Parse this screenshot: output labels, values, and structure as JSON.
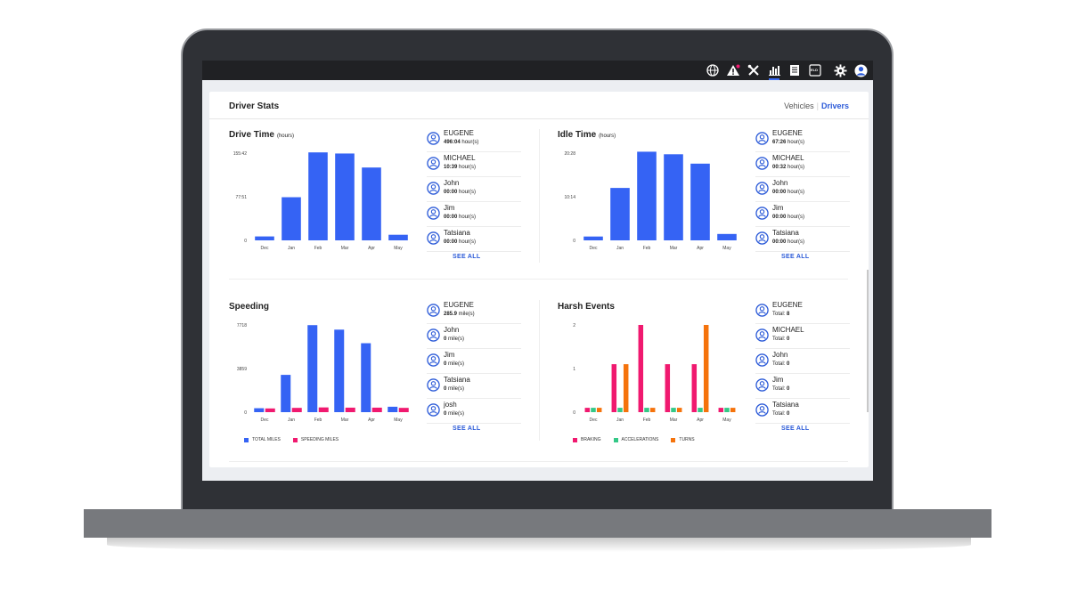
{
  "topbar": {
    "icons": [
      "globe-icon",
      "alert-icon",
      "tools-icon",
      "bar-chart-icon",
      "document-icon",
      "eld-icon",
      "gear-icon",
      "user-icon"
    ],
    "eld_label": "ELD",
    "accent": "#3b6cf6"
  },
  "card": {
    "title": "Driver Stats",
    "toggle_vehicles": "Vehicles",
    "toggle_drivers": "Drivers"
  },
  "panels": {
    "drive_time": {
      "title": "Drive Time",
      "unit": "(hours)",
      "drivers": [
        {
          "name": "EUGENE",
          "value": "496:04",
          "unit": " hour(s)"
        },
        {
          "name": "MICHAEL",
          "value": "10:39",
          "unit": " hour(s)"
        },
        {
          "name": "John",
          "value": "00:00",
          "unit": " hour(s)"
        },
        {
          "name": "Jim",
          "value": "00:00",
          "unit": " hour(s)"
        },
        {
          "name": "Tatsiana",
          "value": "00:00",
          "unit": " hour(s)"
        }
      ],
      "see_all": "SEE ALL"
    },
    "idle_time": {
      "title": "Idle Time",
      "unit": "(hours)",
      "drivers": [
        {
          "name": "EUGENE",
          "value": "67:26",
          "unit": " hour(s)"
        },
        {
          "name": "MICHAEL",
          "value": "00:32",
          "unit": " hour(s)"
        },
        {
          "name": "John",
          "value": "00:00",
          "unit": " hour(s)"
        },
        {
          "name": "Jim",
          "value": "00:00",
          "unit": " hour(s)"
        },
        {
          "name": "Tatsiana",
          "value": "00:00",
          "unit": " hour(s)"
        }
      ],
      "see_all": "SEE ALL"
    },
    "speeding": {
      "title": "Speeding",
      "drivers": [
        {
          "name": "EUGENE",
          "value": "285.9",
          "unit": " mile(s)"
        },
        {
          "name": "John",
          "value": "0",
          "unit": " mile(s)"
        },
        {
          "name": "Jim",
          "value": "0",
          "unit": " mile(s)"
        },
        {
          "name": "Tatsiana",
          "value": "0",
          "unit": " mile(s)"
        },
        {
          "name": "josh",
          "value": "0",
          "unit": " mile(s)"
        }
      ],
      "see_all": "SEE ALL"
    },
    "harsh_events": {
      "title": "Harsh Events",
      "drivers": [
        {
          "name": "EUGENE",
          "prefix": "Total: ",
          "value": "8"
        },
        {
          "name": "MICHAEL",
          "prefix": "Total: ",
          "value": "0"
        },
        {
          "name": "John",
          "prefix": "Total: ",
          "value": "0"
        },
        {
          "name": "Jim",
          "prefix": "Total: ",
          "value": "0"
        },
        {
          "name": "Tatsiana",
          "prefix": "Total: ",
          "value": "0"
        }
      ],
      "see_all": "SEE ALL"
    }
  },
  "chart_data": [
    {
      "id": "drive_time",
      "type": "bar",
      "title": "Drive Time",
      "categories": [
        "Dec",
        "Jan",
        "Feb",
        "Mar",
        "Apr",
        "May"
      ],
      "y_tick_labels": [
        "0",
        "77:51",
        "155:42"
      ],
      "ylim": [
        0,
        155.7
      ],
      "series": [
        {
          "values": [
            7,
            77,
            157,
            155,
            130,
            10
          ],
          "color": "#3563f4"
        }
      ]
    },
    {
      "id": "idle_time",
      "type": "bar",
      "title": "Idle Time",
      "categories": [
        "Dec",
        "Jan",
        "Feb",
        "Mar",
        "Apr",
        "May"
      ],
      "y_tick_labels": [
        "0",
        "10:14",
        "20:28"
      ],
      "ylim": [
        0,
        20.47
      ],
      "series": [
        {
          "values": [
            0.9,
            12.3,
            20.8,
            20.2,
            18.0,
            1.5
          ],
          "color": "#3563f4"
        }
      ]
    },
    {
      "id": "speeding",
      "type": "bar",
      "title": "Speeding",
      "categories": [
        "Dec",
        "Jan",
        "Feb",
        "Mar",
        "Apr",
        "May"
      ],
      "y_tick_labels": [
        "0",
        "3859",
        "7718"
      ],
      "ylim": [
        0,
        7718
      ],
      "series": [
        {
          "name": "TOTAL MILES",
          "values": [
            350,
            3300,
            7700,
            7300,
            6100,
            480
          ],
          "color": "#3563f4"
        },
        {
          "name": "SPEEDING MILES",
          "values": [
            330,
            380,
            420,
            400,
            400,
            380
          ],
          "color": "#f0196f"
        }
      ]
    },
    {
      "id": "harsh_events",
      "type": "bar",
      "title": "Harsh Events",
      "categories": [
        "Dec",
        "Jan",
        "Feb",
        "Mar",
        "Apr",
        "May"
      ],
      "y_tick_labels": [
        "0",
        "1",
        "2"
      ],
      "ylim": [
        0,
        2
      ],
      "series": [
        {
          "name": "BRAKING",
          "values": [
            0.1,
            1.1,
            2.0,
            1.1,
            1.1,
            0.1
          ],
          "color": "#f0196f"
        },
        {
          "name": "ACCELERATIONS",
          "values": [
            0.1,
            0.1,
            0.1,
            0.1,
            0.1,
            0.1
          ],
          "color": "#34c887"
        },
        {
          "name": "TURNS",
          "values": [
            0.1,
            1.1,
            0.1,
            0.1,
            2.0,
            0.1
          ],
          "color": "#f5730c"
        }
      ]
    }
  ]
}
